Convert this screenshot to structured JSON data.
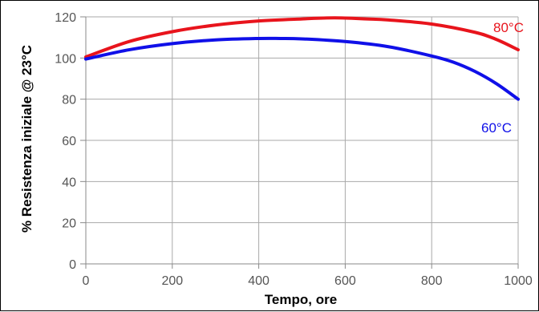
{
  "chart_data": {
    "type": "line",
    "title": "",
    "xlabel": "Tempo, ore",
    "ylabel": "% Resistenza iniziale @ 23°C",
    "xlim": [
      0,
      1000
    ],
    "ylim": [
      0,
      120
    ],
    "xticks": [
      0,
      200,
      400,
      600,
      800,
      1000
    ],
    "yticks": [
      0,
      20,
      40,
      60,
      80,
      100,
      120
    ],
    "grid": true,
    "legend": "none",
    "series": [
      {
        "name": "80°C",
        "color": "#e8141c",
        "x": [
          0,
          100,
          200,
          300,
          400,
          500,
          575,
          650,
          700,
          800,
          900,
          950,
          1000
        ],
        "y": [
          100.5,
          108,
          112.8,
          116,
          118,
          119,
          119.5,
          119,
          118.5,
          116.5,
          112.5,
          109,
          104
        ]
      },
      {
        "name": "60°C",
        "color": "#1010e8",
        "x": [
          0,
          100,
          200,
          300,
          400,
          450,
          500,
          600,
          700,
          800,
          850,
          900,
          950,
          1000
        ],
        "y": [
          99.5,
          104,
          107,
          108.8,
          109.5,
          109.5,
          109.3,
          108,
          105.5,
          101,
          98,
          93.5,
          87.5,
          80
        ]
      }
    ]
  }
}
